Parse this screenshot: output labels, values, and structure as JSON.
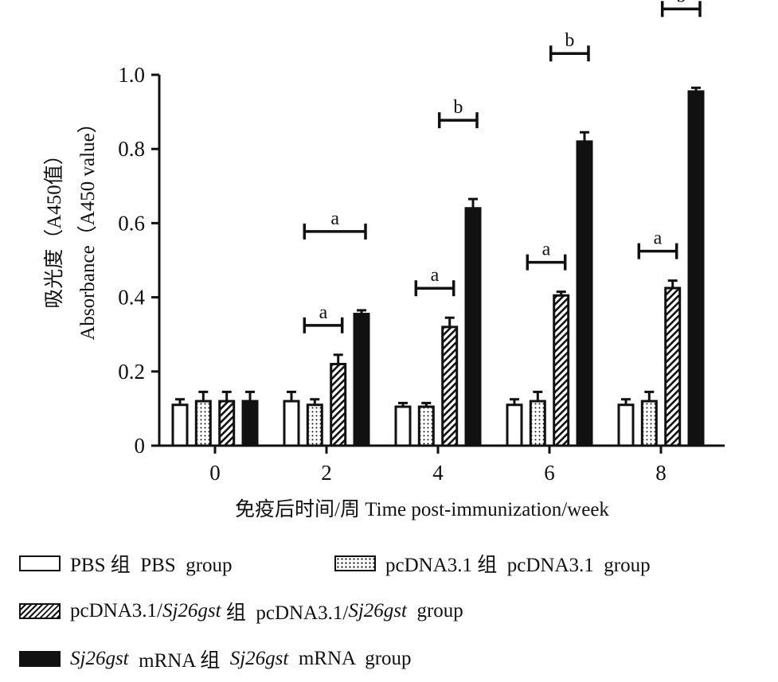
{
  "chart_data": {
    "type": "bar",
    "categories": [
      "0",
      "2",
      "4",
      "6",
      "8"
    ],
    "ylabel_cn": "吸光度（A450值）",
    "ylabel_en": "Absorbance（A450 value）",
    "xlabel": "免疫后时间/周 Time post-immunization/week",
    "ylim": [
      0,
      1.0
    ],
    "yticks": [
      0,
      0.2,
      0.4,
      0.6,
      0.8,
      1.0
    ],
    "ytick_labels": [
      "0",
      "0.2",
      "0.4",
      "0.6",
      "0.8",
      "1.0"
    ],
    "series": [
      {
        "name": "PBS 组 PBS group",
        "pattern": "open",
        "values": [
          0.11,
          0.12,
          0.105,
          0.11,
          0.11
        ],
        "errors": [
          0.015,
          0.025,
          0.01,
          0.015,
          0.015
        ]
      },
      {
        "name": "pcDNA3.1 组 pcDNA3.1 group",
        "pattern": "dotted",
        "values": [
          0.12,
          0.11,
          0.105,
          0.12,
          0.12
        ],
        "errors": [
          0.025,
          0.015,
          0.01,
          0.025,
          0.025
        ]
      },
      {
        "name": "pcDNA3.1/Sj26gst 组 pcDNA3.1/Sj26gst group",
        "pattern": "hatched",
        "values": [
          0.12,
          0.22,
          0.32,
          0.405,
          0.425
        ],
        "errors": [
          0.025,
          0.025,
          0.025,
          0.01,
          0.02
        ]
      },
      {
        "name": "Sj26gst mRNA 组 Sj26gst mRNA group",
        "pattern": "solid",
        "values": [
          0.12,
          0.355,
          0.64,
          0.82,
          0.955
        ],
        "errors": [
          0.025,
          0.01,
          0.025,
          0.025,
          0.01
        ]
      }
    ],
    "significance": [
      {
        "group": 1,
        "from_series": 1,
        "to_series": 2,
        "label": "a"
      },
      {
        "group": 1,
        "from_series": 1,
        "to_series": 3,
        "label": "a"
      },
      {
        "group": 2,
        "from_series": 1,
        "to_series": 2,
        "label": "a"
      },
      {
        "group": 2,
        "from_series": 2,
        "to_series": 3,
        "label": "b"
      },
      {
        "group": 3,
        "from_series": 1,
        "to_series": 2,
        "label": "a"
      },
      {
        "group": 3,
        "from_series": 2,
        "to_series": 3,
        "label": "b"
      },
      {
        "group": 4,
        "from_series": 1,
        "to_series": 2,
        "label": "a"
      },
      {
        "group": 4,
        "from_series": 2,
        "to_series": 3,
        "label": "b"
      }
    ]
  },
  "legend": [
    {
      "pattern": "open",
      "parts": [
        [
          "PBS 组  PBS  group",
          false
        ]
      ]
    },
    {
      "pattern": "dotted",
      "parts": [
        [
          "pcDNA3.1 组  pcDNA3.1  group",
          false
        ]
      ]
    },
    {
      "pattern": "hatched",
      "parts": [
        [
          "pcDNA3.1/",
          false
        ],
        [
          "Sj26gst",
          true
        ],
        [
          " 组  pcDNA3.1/",
          false
        ],
        [
          "Sj26gst",
          true
        ],
        [
          "  group",
          false
        ]
      ]
    },
    {
      "pattern": "solid",
      "parts": [
        [
          "Sj26gst",
          true
        ],
        [
          "  mRNA 组  ",
          false
        ],
        [
          "Sj26gst",
          true
        ],
        [
          "  mRNA  group",
          false
        ]
      ]
    }
  ]
}
